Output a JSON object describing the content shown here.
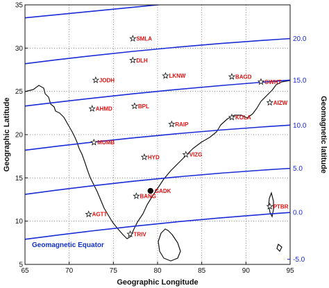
{
  "chart_data": {
    "type": "map",
    "xlabel": "Geographic Longitude",
    "ylabel": "Geographic Latitude",
    "y2label": "Geomagnetic latitude",
    "xlim": [
      65,
      95
    ],
    "ylim": [
      5,
      35
    ],
    "xticks": [
      65,
      70,
      75,
      80,
      85,
      90,
      95
    ],
    "yticks": [
      5,
      10,
      15,
      20,
      25,
      30,
      35
    ],
    "geomagnetic_lines": [
      {
        "label": "20.0",
        "y_left": 33.5,
        "y_right": 36.5,
        "mid": 35.0
      },
      {
        "label": "15.0",
        "y_left": 28.2,
        "y_right": 31.1,
        "mid": 29.9
      },
      {
        "label": "10.0",
        "y_left": 23.3,
        "y_right": 26.3,
        "mid": 25.0
      },
      {
        "label": "5.0",
        "y_left": 18.2,
        "y_right": 21.1,
        "mid": 19.9
      },
      {
        "label": "0.0",
        "y_left": 13.1,
        "y_right": 16.1,
        "mid": 14.9
      },
      {
        "label": "-5.0",
        "y_left": 7.9,
        "y_right": 11.0,
        "mid": 9.7
      }
    ],
    "geomagnetic_tick_labels": [
      {
        "label": "20.0",
        "lat": 31.1
      },
      {
        "label": "15.0",
        "lat": 26.3
      },
      {
        "label": "10.0",
        "lat": 21.1
      },
      {
        "label": "5.0",
        "lat": 16.1
      },
      {
        "label": "0.0",
        "lat": 11.0
      },
      {
        "label": "-5.0",
        "lat": 5.6
      }
    ],
    "equator_label": "Geomagnetic Equator",
    "stations": [
      {
        "name": "SMLA",
        "lon": 77.2,
        "lat": 31.1
      },
      {
        "name": "DLH",
        "lon": 77.2,
        "lat": 28.6
      },
      {
        "name": "JODH",
        "lon": 73.0,
        "lat": 26.3
      },
      {
        "name": "LKNW",
        "lon": 80.9,
        "lat": 26.8
      },
      {
        "name": "BAGD",
        "lon": 88.4,
        "lat": 26.7
      },
      {
        "name": "GWHT",
        "lon": 91.7,
        "lat": 26.1
      },
      {
        "name": "AHMD",
        "lon": 72.6,
        "lat": 23.0
      },
      {
        "name": "BPL",
        "lon": 77.4,
        "lat": 23.3
      },
      {
        "name": "AIZW",
        "lon": 92.7,
        "lat": 23.7
      },
      {
        "name": "KOLA",
        "lon": 88.4,
        "lat": 22.0
      },
      {
        "name": "RAIP",
        "lon": 81.6,
        "lat": 21.2
      },
      {
        "name": "MUMB",
        "lon": 72.8,
        "lat": 19.1
      },
      {
        "name": "HYD",
        "lon": 78.5,
        "lat": 17.4
      },
      {
        "name": "VIZG",
        "lon": 83.2,
        "lat": 17.7
      },
      {
        "name": "BANG",
        "lon": 77.6,
        "lat": 12.9
      },
      {
        "name": "AGTT",
        "lon": 72.2,
        "lat": 10.8
      },
      {
        "name": "TRIV",
        "lon": 76.9,
        "lat": 8.5
      },
      {
        "name": "PTBR",
        "lon": 92.7,
        "lat": 11.7
      }
    ],
    "marker": {
      "name": "GADK",
      "lon": 79.2,
      "lat": 13.5
    }
  }
}
